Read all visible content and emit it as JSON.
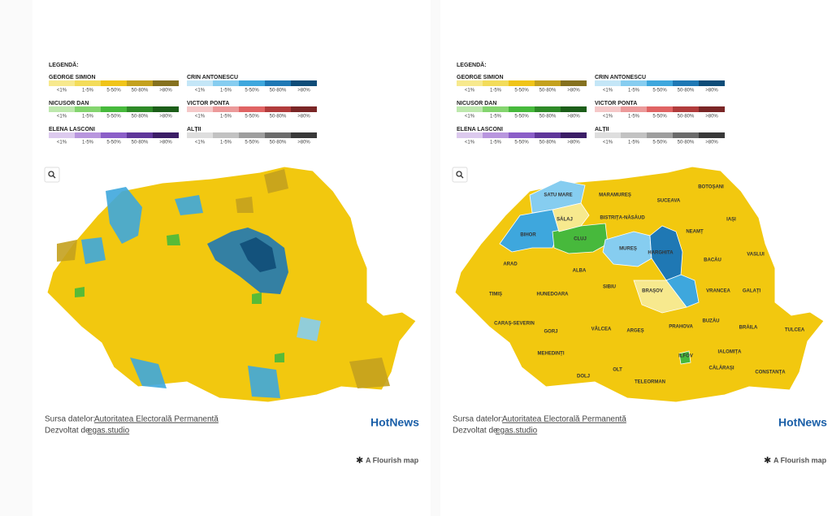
{
  "panels": [
    {
      "legend": {
        "title": "LEGENDĂ:",
        "scale": [
          "<1%",
          "1-5%",
          "5-50%",
          "50-80%",
          ">80%"
        ],
        "candidates": [
          {
            "name": "GEORGE SIMION",
            "colors": [
              "#f7e98e",
              "#f3dc5a",
              "#f0c419",
              "#c4a11e",
              "#85711f"
            ]
          },
          {
            "name": "CRIN ANTONESCU",
            "colors": [
              "#c4e6f7",
              "#86cdf0",
              "#3ea7dd",
              "#1f78b4",
              "#0f4c78"
            ]
          },
          {
            "name": "NICUSOR DAN",
            "colors": [
              "#bde8ad",
              "#84d56f",
              "#47b93c",
              "#2e8a27",
              "#1c5e19"
            ]
          },
          {
            "name": "VICTOR PONTA",
            "colors": [
              "#f5c9c9",
              "#ec9a9a",
              "#e06464",
              "#b13c3c",
              "#7a2626"
            ]
          },
          {
            "name": "ELENA LASCONI",
            "colors": [
              "#dccaee",
              "#b896de",
              "#8b5ec8",
              "#5f369a",
              "#3b1d66"
            ]
          },
          {
            "name": "ALȚII",
            "colors": [
              "#dedede",
              "#c2c2c2",
              "#9e9e9e",
              "#6b6b6b",
              "#393939"
            ]
          }
        ]
      },
      "source": {
        "label": "Sursa datelor:",
        "link": "Autoritatea Electorală Permanentă"
      },
      "developer": {
        "label": "Dezvoltat de",
        "link": "egas.studio"
      },
      "logo": "HotNews",
      "credit": "A Flourish map"
    },
    {
      "legend": {
        "title": "LEGENDĂ:",
        "scale": [
          "<1%",
          "1-5%",
          "5-50%",
          "50-80%",
          ">80%"
        ],
        "candidates": [
          {
            "name": "GEORGE SIMION",
            "colors": [
              "#f7e98e",
              "#f3dc5a",
              "#f0c419",
              "#c4a11e",
              "#85711f"
            ]
          },
          {
            "name": "CRIN ANTONESCU",
            "colors": [
              "#c4e6f7",
              "#86cdf0",
              "#3ea7dd",
              "#1f78b4",
              "#0f4c78"
            ]
          },
          {
            "name": "NICUSOR DAN",
            "colors": [
              "#bde8ad",
              "#84d56f",
              "#47b93c",
              "#2e8a27",
              "#1c5e19"
            ]
          },
          {
            "name": "VICTOR PONTA",
            "colors": [
              "#f5c9c9",
              "#ec9a9a",
              "#e06464",
              "#b13c3c",
              "#7a2626"
            ]
          },
          {
            "name": "ELENA LASCONI",
            "colors": [
              "#dccaee",
              "#b896de",
              "#8b5ec8",
              "#5f369a",
              "#3b1d66"
            ]
          },
          {
            "name": "ALȚII",
            "colors": [
              "#dedede",
              "#c2c2c2",
              "#9e9e9e",
              "#6b6b6b",
              "#393939"
            ]
          }
        ]
      },
      "source": {
        "label": "Sursa datelor:",
        "link": "Autoritatea Electorală Permanentă"
      },
      "developer": {
        "label": "Dezvoltat de",
        "link": "egas.studio"
      },
      "logo": "HotNews",
      "credit": "A Flourish map",
      "counties": [
        "SATU MARE",
        "MARAMUREȘ",
        "BOTOȘANI",
        "SUCEAVA",
        "SĂLAJ",
        "BISTRIȚA-NĂSĂUD",
        "IAȘI",
        "BIHOR",
        "CLUJ",
        "NEAMȚ",
        "MUREȘ",
        "HARGHITA",
        "VASLUI",
        "BACĂU",
        "ARAD",
        "ALBA",
        "SIBIU",
        "BRAȘOV",
        "VRANCEA",
        "GALAȚI",
        "TIMIȘ",
        "HUNEDOARA",
        "CARAȘ-SEVERIN",
        "GORJ",
        "VÂLCEA",
        "ARGEȘ",
        "PRAHOVA",
        "BUZĂU",
        "BRĂILA",
        "TULCEA",
        "MEHEDINȚI",
        "ILFOV",
        "IALOMIȚA",
        "DOLJ",
        "OLT",
        "CĂLĂRAȘI",
        "CONSTANȚA",
        "TELEORMAN"
      ]
    }
  ]
}
